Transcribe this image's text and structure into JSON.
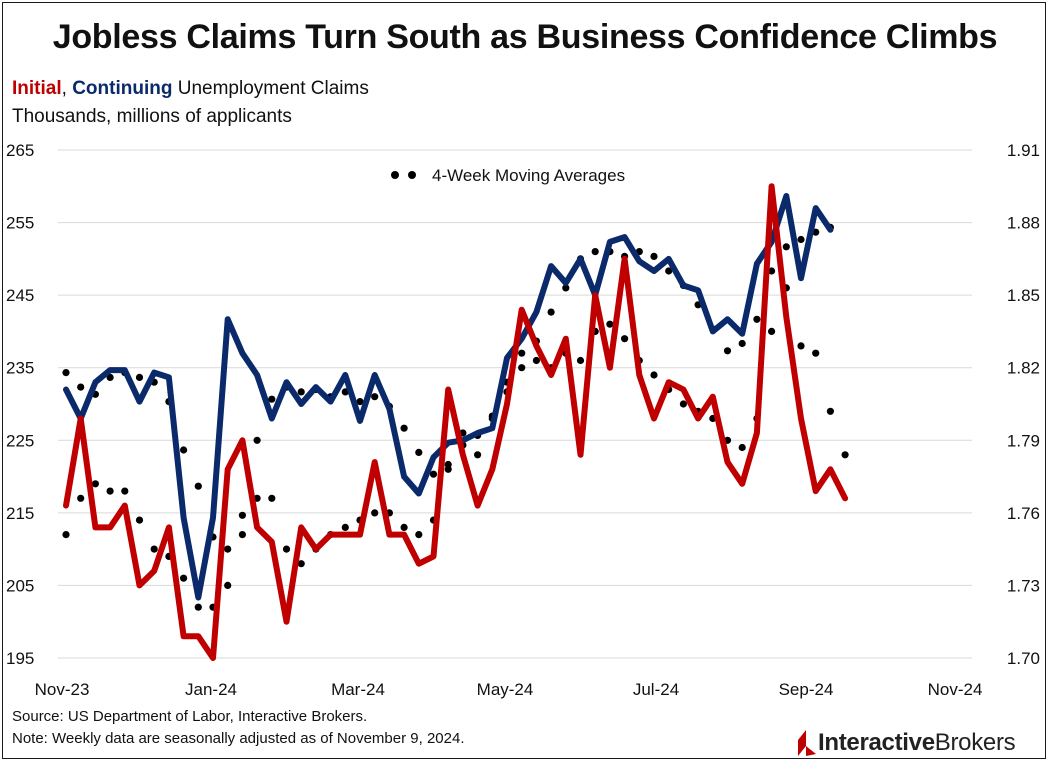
{
  "title": "Jobless Claims Turn South as Business Confidence Climbs",
  "subtitle": {
    "initial": "Initial",
    "comma": ",",
    "continuing": "Continuing",
    "rest": "Unemployment Claims"
  },
  "units": "Thousands, millions of applicants",
  "source": "Source: US Department of Labor, Interactive Brokers.",
  "note": "Note: Weekly data are seasonally adjusted as of November 9, 2024.",
  "brand": {
    "part1": "Interactive",
    "part2": "Brokers"
  },
  "colors": {
    "initial": "#c00000",
    "continuing": "#0b2a6b",
    "moving_average": "#000000",
    "grid": "#d9d9d9"
  },
  "chart_data": {
    "type": "line",
    "legend": "4-Week Moving Averages",
    "legend_placement": "top-center",
    "grid": true,
    "x_tick_labels": [
      "Nov-23",
      "Jan-24",
      "Mar-24",
      "May-24",
      "Jul-24",
      "Sep-24",
      "Nov-24"
    ],
    "y_left": {
      "ticks": [
        "265",
        "255",
        "245",
        "235",
        "225",
        "215",
        "205",
        "195"
      ],
      "range": [
        195,
        265
      ]
    },
    "y_right": {
      "ticks": [
        "1.91",
        "1.88",
        "1.85",
        "1.82",
        "1.79",
        "1.76",
        "1.73",
        "1.70"
      ],
      "range": [
        1.7,
        1.91
      ]
    },
    "series": [
      {
        "name": "Initial",
        "axis": "left",
        "style": "solid",
        "values": [
          216,
          228,
          213,
          213,
          216,
          205,
          207,
          213,
          198,
          198,
          195,
          221,
          225,
          213,
          211,
          200,
          213,
          210,
          212,
          212,
          212,
          222,
          212,
          212,
          208,
          209,
          232,
          223,
          216,
          221,
          230,
          243,
          238,
          234,
          239,
          223,
          245,
          235,
          250,
          234,
          228,
          233,
          232,
          228,
          231,
          222,
          219,
          226,
          260,
          242,
          228,
          218,
          221,
          217
        ]
      },
      {
        "name": "Continuing",
        "axis": "right",
        "style": "solid",
        "values": [
          1.811,
          1.799,
          1.814,
          1.819,
          1.819,
          1.806,
          1.818,
          1.816,
          1.758,
          1.725,
          1.758,
          1.84,
          1.826,
          1.817,
          1.799,
          1.814,
          1.805,
          1.812,
          1.806,
          1.817,
          1.798,
          1.817,
          1.803,
          1.775,
          1.768,
          1.783,
          1.789,
          1.79,
          1.793,
          1.795,
          1.824,
          1.832,
          1.843,
          1.862,
          1.855,
          1.865,
          1.85,
          1.872,
          1.874,
          1.864,
          1.86,
          1.865,
          1.854,
          1.852,
          1.835,
          1.84,
          1.834,
          1.863,
          1.872,
          1.891,
          1.857,
          1.886,
          1.877
        ]
      },
      {
        "name": "Initial 4-week average",
        "axis": "left",
        "style": "dotted",
        "values": [
          212,
          217,
          219,
          218,
          218,
          214,
          210,
          209,
          206,
          202,
          202,
          205,
          212,
          217,
          217,
          210,
          208,
          210,
          212,
          213,
          214,
          215,
          215,
          213,
          212,
          214,
          221,
          226,
          223,
          228,
          233,
          237,
          236,
          235,
          237,
          236,
          240,
          241,
          239,
          236,
          234,
          232,
          230,
          229,
          228,
          225,
          224,
          228,
          240,
          246,
          238,
          237,
          229,
          223
        ]
      },
      {
        "name": "Continuing 4-week average",
        "axis": "right",
        "style": "dotted",
        "values": [
          1.818,
          1.812,
          1.809,
          1.816,
          1.818,
          1.816,
          1.814,
          1.806,
          1.786,
          1.771,
          1.75,
          1.745,
          1.759,
          1.79,
          1.807,
          1.812,
          1.81,
          1.811,
          1.808,
          1.81,
          1.806,
          1.808,
          1.804,
          1.795,
          1.785,
          1.776,
          1.78,
          1.788,
          1.792,
          1.8,
          1.81,
          1.82,
          1.831,
          1.843,
          1.853,
          1.865,
          1.868,
          1.868,
          1.866,
          1.868,
          1.866,
          1.86,
          1.854,
          1.846,
          1.836,
          1.827,
          1.83,
          1.84,
          1.86,
          1.87,
          1.873,
          1.876,
          1.878
        ]
      }
    ]
  }
}
